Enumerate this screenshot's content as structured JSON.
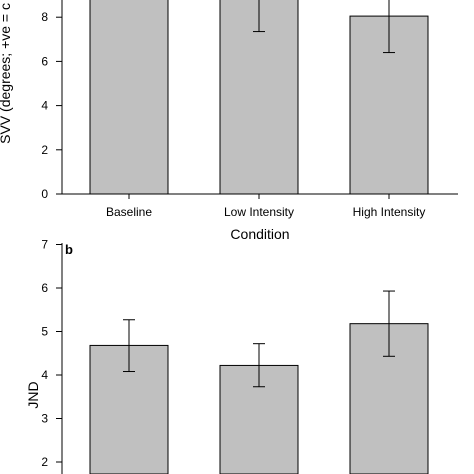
{
  "chart_data": [
    {
      "type": "bar",
      "panel_label": "",
      "categories": [
        "Baseline",
        "Low Intensity",
        "High Intensity"
      ],
      "values": [
        9.0,
        9.0,
        8.05
      ],
      "error_low": [
        null,
        7.35,
        6.4
      ],
      "error_high": [
        null,
        null,
        null
      ],
      "xlabel": "Condition",
      "ylabel": "SVV (degrees; +ve = c",
      "yticks": [
        0,
        2,
        4,
        6,
        8
      ],
      "ylim": [
        0,
        9.0
      ],
      "grid": false,
      "bar_color": "#c0c0c0"
    },
    {
      "type": "bar",
      "panel_label": "b",
      "categories": [
        "",
        "",
        ""
      ],
      "values": [
        4.68,
        4.22,
        5.18
      ],
      "error_low": [
        4.08,
        3.73,
        4.43
      ],
      "error_high": [
        5.27,
        4.72,
        5.93
      ],
      "xlabel": "",
      "ylabel": "JND",
      "yticks": [
        2,
        3,
        4,
        5,
        6,
        7
      ],
      "ylim": [
        1.7,
        7
      ],
      "grid": false,
      "bar_color": "#c0c0c0"
    }
  ]
}
